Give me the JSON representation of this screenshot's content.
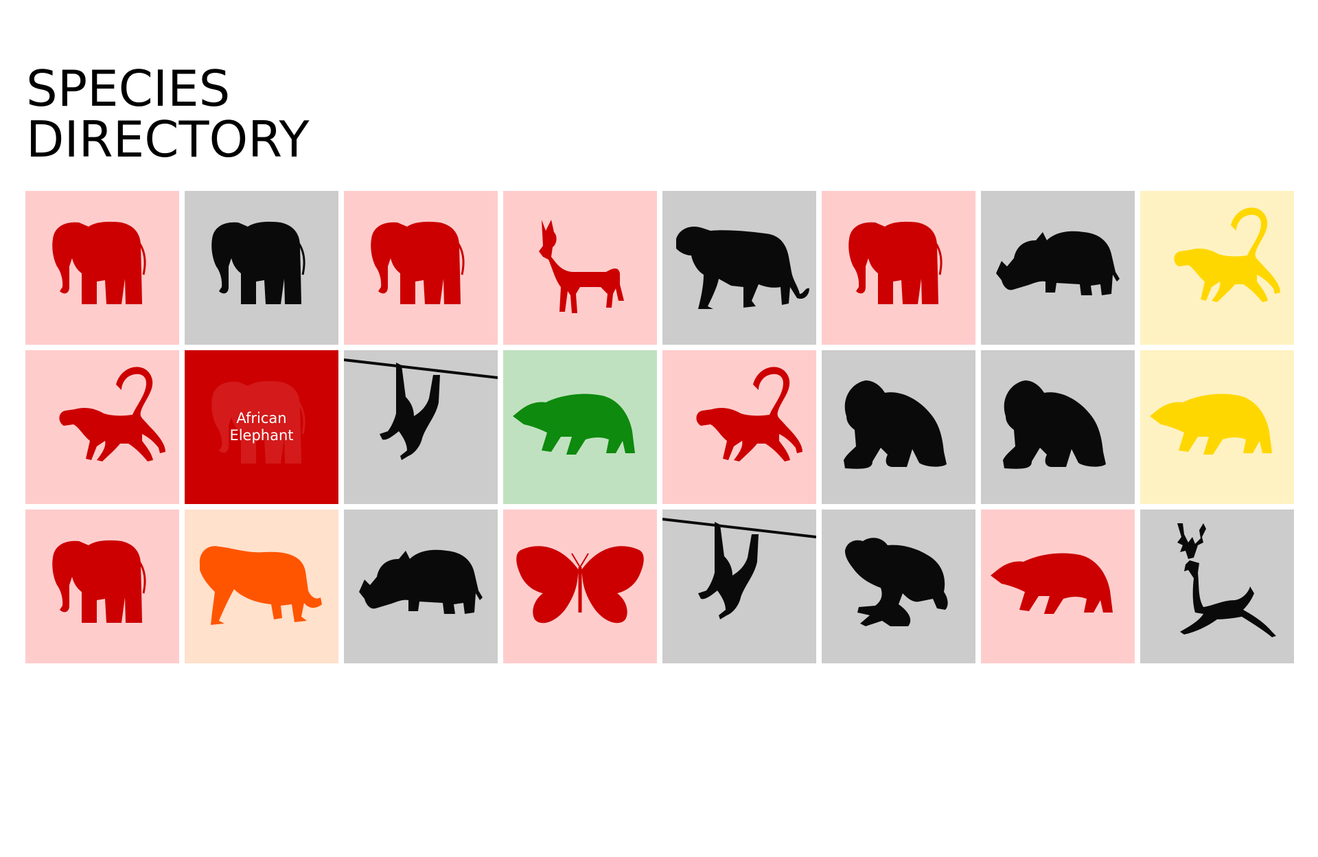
{
  "header": {
    "title_line1": "SPECIES",
    "title_line2": "DIRECTORY"
  },
  "colors": {
    "red": "#cc0000",
    "pink": "#ffcccc",
    "gray": "#cccccc",
    "black": "#0a0a0a",
    "yellow": "#ffd700",
    "lightyellow": "#fff2c2",
    "green": "#0e8a0e",
    "lightgreen": "#c0e1c0",
    "orange": "#ff5500",
    "peach": "#ffe1cc"
  },
  "tiles": [
    {
      "animal": "elephant",
      "icon": "elephant-icon",
      "bg": "#ffcccc",
      "fg": "#cc0000"
    },
    {
      "animal": "elephant",
      "icon": "elephant-icon",
      "bg": "#cccccc",
      "fg": "#0a0a0a"
    },
    {
      "animal": "elephant",
      "icon": "elephant-icon",
      "bg": "#ffcccc",
      "fg": "#cc0000"
    },
    {
      "animal": "wild-dog",
      "icon": "wild-dog-icon",
      "bg": "#ffcccc",
      "fg": "#cc0000"
    },
    {
      "animal": "lioness",
      "icon": "lioness-icon",
      "bg": "#cccccc",
      "fg": "#0a0a0a"
    },
    {
      "animal": "elephant",
      "icon": "elephant-icon",
      "bg": "#ffcccc",
      "fg": "#cc0000"
    },
    {
      "animal": "rhino",
      "icon": "rhino-icon",
      "bg": "#cccccc",
      "fg": "#0a0a0a"
    },
    {
      "animal": "monkey",
      "icon": "monkey-icon",
      "bg": "#fff2c2",
      "fg": "#ffd700"
    },
    {
      "animal": "monkey",
      "icon": "monkey-icon",
      "bg": "#ffcccc",
      "fg": "#cc0000"
    },
    {
      "animal": "elephant",
      "icon": "elephant-icon",
      "bg": "#cc0000",
      "fg": "#d41a1a",
      "hovered": true,
      "label_line1": "African",
      "label_line2": "Elephant"
    },
    {
      "animal": "gibbon",
      "icon": "gibbon-icon",
      "bg": "#cccccc",
      "fg": "#0a0a0a"
    },
    {
      "animal": "bear",
      "icon": "bear-icon",
      "bg": "#c0e1c0",
      "fg": "#0e8a0e"
    },
    {
      "animal": "monkey",
      "icon": "monkey-icon",
      "bg": "#ffcccc",
      "fg": "#cc0000"
    },
    {
      "animal": "gorilla",
      "icon": "gorilla-icon",
      "bg": "#cccccc",
      "fg": "#0a0a0a"
    },
    {
      "animal": "gorilla",
      "icon": "gorilla-icon",
      "bg": "#cccccc",
      "fg": "#0a0a0a"
    },
    {
      "animal": "bear",
      "icon": "bear-icon",
      "bg": "#fff2c2",
      "fg": "#ffd700"
    },
    {
      "animal": "elephant",
      "icon": "elephant-icon",
      "bg": "#ffcccc",
      "fg": "#cc0000"
    },
    {
      "animal": "tiger",
      "icon": "tiger-icon",
      "bg": "#ffe1cc",
      "fg": "#ff5500"
    },
    {
      "animal": "rhino",
      "icon": "rhino-icon",
      "bg": "#cccccc",
      "fg": "#0a0a0a"
    },
    {
      "animal": "butterfly",
      "icon": "butterfly-icon",
      "bg": "#ffcccc",
      "fg": "#cc0000"
    },
    {
      "animal": "gibbon",
      "icon": "gibbon-icon",
      "bg": "#cccccc",
      "fg": "#0a0a0a"
    },
    {
      "animal": "frog",
      "icon": "frog-icon",
      "bg": "#cccccc",
      "fg": "#0a0a0a"
    },
    {
      "animal": "bear",
      "icon": "bear-icon",
      "bg": "#ffcccc",
      "fg": "#cc0000"
    },
    {
      "animal": "deer",
      "icon": "deer-icon",
      "bg": "#cccccc",
      "fg": "#0a0a0a"
    }
  ]
}
